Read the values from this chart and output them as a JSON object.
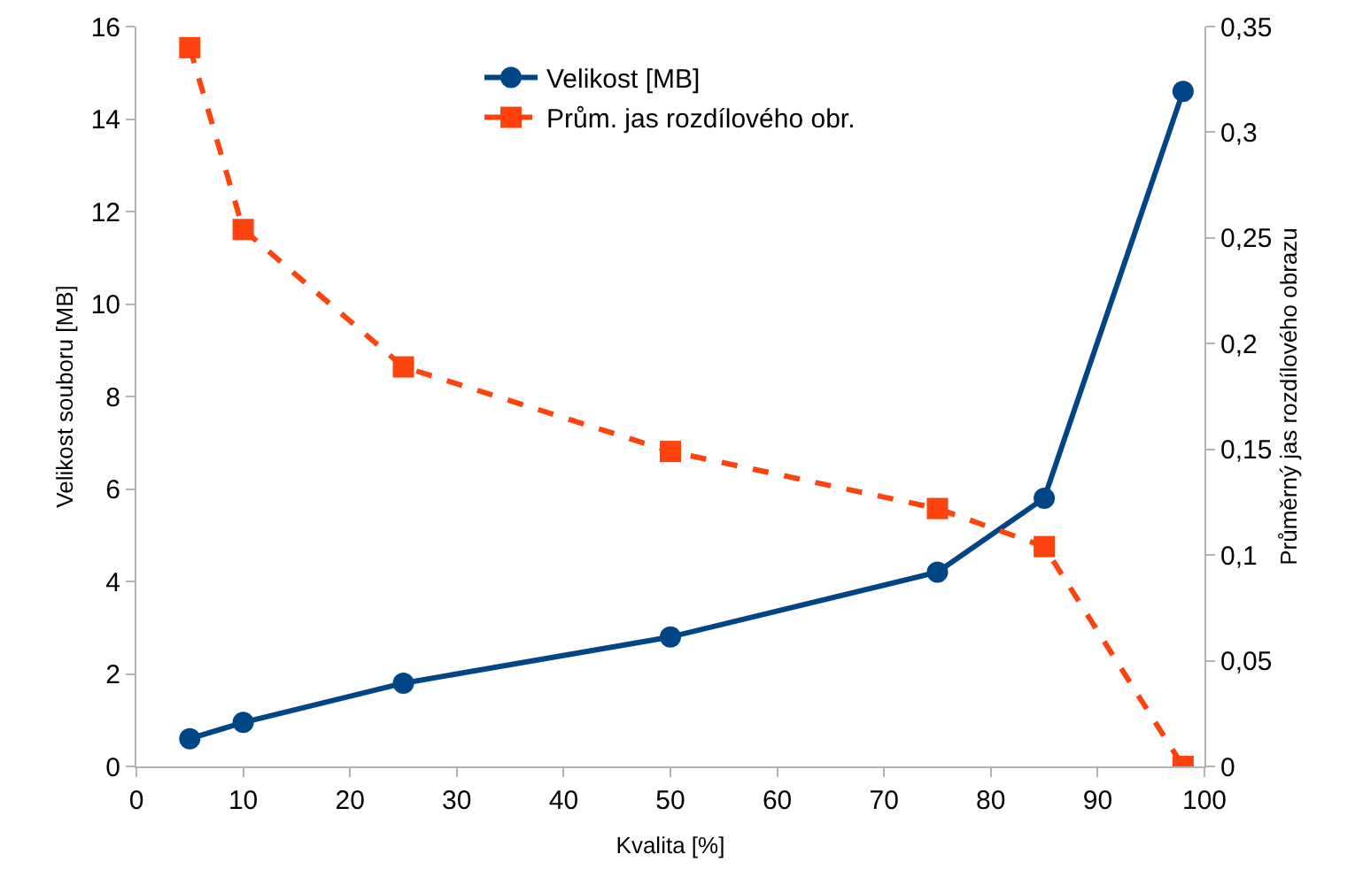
{
  "chart_data": {
    "type": "line",
    "xlabel": "Kvalita [%]",
    "ylabel": "Velikost souboru [MB]",
    "y2label": "Průměrný jas rozdílového obrazu",
    "x": [
      5,
      10,
      25,
      50,
      75,
      85,
      98
    ],
    "series": [
      {
        "name": "Velikost [MB]",
        "color": "#004586",
        "values": [
          0.6,
          0.95,
          1.8,
          2.8,
          4.2,
          5.8,
          14.6
        ],
        "marker": "circle",
        "line_style": "solid"
      },
      {
        "name": "Prům. jas rozdílového obr.",
        "color": "#ff420e",
        "values": [
          0.34,
          0.254,
          0.189,
          0.149,
          0.122,
          0.104,
          0.0
        ],
        "marker": "square",
        "line_style": "dashed",
        "axis": "y2"
      }
    ],
    "xlim": [
      0,
      100
    ],
    "xticks": [
      0,
      10,
      20,
      30,
      40,
      50,
      60,
      70,
      80,
      90,
      100
    ],
    "ylim": [
      0,
      16
    ],
    "yticks": [
      0,
      2,
      4,
      6,
      8,
      10,
      12,
      14,
      16
    ],
    "y2lim": [
      0,
      0.35
    ],
    "y2ticks": [
      0,
      {
        "value": 0.05,
        "label": "0,05"
      },
      {
        "value": 0.1,
        "label": "0,1"
      },
      {
        "value": 0.15,
        "label": "0,15"
      },
      {
        "value": 0.2,
        "label": "0,2"
      },
      {
        "value": 0.25,
        "label": "0,25"
      },
      {
        "value": 0.3,
        "label": "0,3"
      },
      {
        "value": 0.35,
        "label": "0,35"
      }
    ],
    "grid": false,
    "legend": "top"
  }
}
